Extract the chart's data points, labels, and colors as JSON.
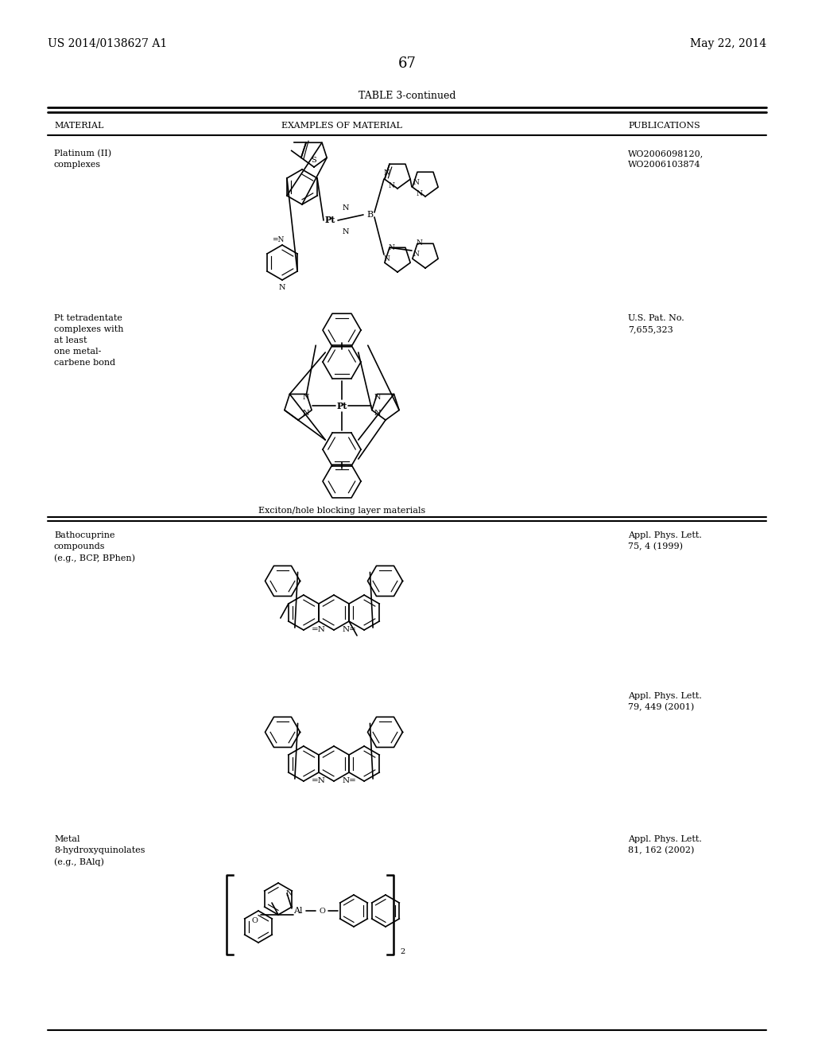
{
  "bg_color": "#ffffff",
  "header_left": "US 2014/0138627 A1",
  "header_right": "May 22, 2014",
  "page_number": "67",
  "table_title": "TABLE 3-continued",
  "col1_header": "MATERIAL",
  "col2_header": "EXAMPLES OF MATERIAL",
  "col3_header": "PUBLICATIONS",
  "font_size_header": 10,
  "font_size_body": 8,
  "font_size_page": 12
}
